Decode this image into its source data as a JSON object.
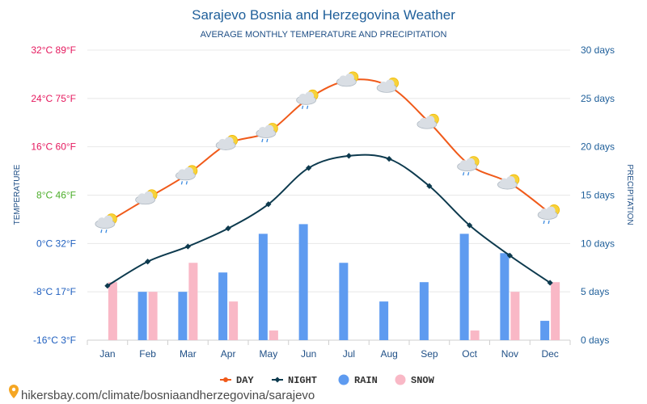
{
  "chart_data": {
    "type": "line",
    "title": "Sarajevo Bosnia and Herzegovina Weather",
    "subtitle": "AVERAGE MONTHLY TEMPERATURE AND PRECIPITATION",
    "ylabel_left": "TEMPERATURE",
    "ylabel_right": "PRECIPITATION",
    "categories": [
      "Jan",
      "Feb",
      "Mar",
      "Apr",
      "May",
      "Jun",
      "Jul",
      "Aug",
      "Sep",
      "Oct",
      "Nov",
      "Dec"
    ],
    "left_axis": {
      "ylim": [
        -16,
        32
      ],
      "ticks": [
        {
          "value": 32,
          "label": "32°C 89°F",
          "color": "#e5195e"
        },
        {
          "value": 24,
          "label": "24°C 75°F",
          "color": "#e5195e"
        },
        {
          "value": 16,
          "label": "16°C 60°F",
          "color": "#e5195e"
        },
        {
          "value": 8,
          "label": "8°C 46°F",
          "color": "#4cae2a"
        },
        {
          "value": 0,
          "label": "0°C 32°F",
          "color": "#1f5fbf"
        },
        {
          "value": -8,
          "label": "-8°C 17°F",
          "color": "#1f5fbf"
        },
        {
          "value": -16,
          "label": "-16°C 3°F",
          "color": "#1f5fbf"
        }
      ]
    },
    "right_axis": {
      "ylim": [
        0,
        30
      ],
      "ticks": [
        {
          "value": 30,
          "label": "30 days"
        },
        {
          "value": 25,
          "label": "25 days"
        },
        {
          "value": 20,
          "label": "20 days"
        },
        {
          "value": 15,
          "label": "15 days"
        },
        {
          "value": 10,
          "label": "10 days"
        },
        {
          "value": 5,
          "label": "5 days"
        },
        {
          "value": 0,
          "label": "0 days"
        }
      ]
    },
    "series": [
      {
        "name": "DAY",
        "kind": "line",
        "axis": "left",
        "color": "#f05a1a",
        "values": [
          3.5,
          7.5,
          11.5,
          16.5,
          18.5,
          24,
          27,
          26,
          20,
          13,
          10,
          5
        ]
      },
      {
        "name": "NIGHT",
        "kind": "line",
        "axis": "left",
        "color": "#0d3a4e",
        "values": [
          -7,
          -3,
          -0.5,
          2.5,
          6.5,
          12.5,
          14.5,
          14,
          9.5,
          3,
          -2,
          -6.5
        ]
      },
      {
        "name": "RAIN",
        "kind": "bar",
        "axis": "right",
        "color": "#5e9bf0",
        "values": [
          0,
          5,
          5,
          7,
          11,
          12,
          8,
          4,
          6,
          11,
          9,
          2
        ]
      },
      {
        "name": "SNOW",
        "kind": "bar",
        "axis": "right",
        "color": "#f9b8c6",
        "values": [
          6,
          5,
          8,
          4,
          1,
          0,
          0,
          0,
          0,
          1,
          5,
          6
        ]
      }
    ],
    "weather_icons": [
      "cloud-sun-rain-icon",
      "cloud-sun-icon",
      "cloud-sun-rain-icon",
      "cloud-sun-icon",
      "cloud-sun-rain-icon",
      "cloud-sun-rain-icon",
      "cloud-sun-icon",
      "cloud-sun-icon",
      "cloud-sun-icon",
      "cloud-sun-rain-icon",
      "cloud-sun-icon",
      "cloud-sun-rain-icon"
    ],
    "grid": true,
    "legend_position": "bottom-center"
  },
  "footer": {
    "url": "hikersbay.com/climate/bosniaandherzegovina/sarajevo"
  },
  "colors": {
    "title": "#1f5f9a",
    "right_axis": "#1f5f9a",
    "grid": "#e8e8e8",
    "cloud": "#d9dee4",
    "sun": "#f7d23a"
  }
}
